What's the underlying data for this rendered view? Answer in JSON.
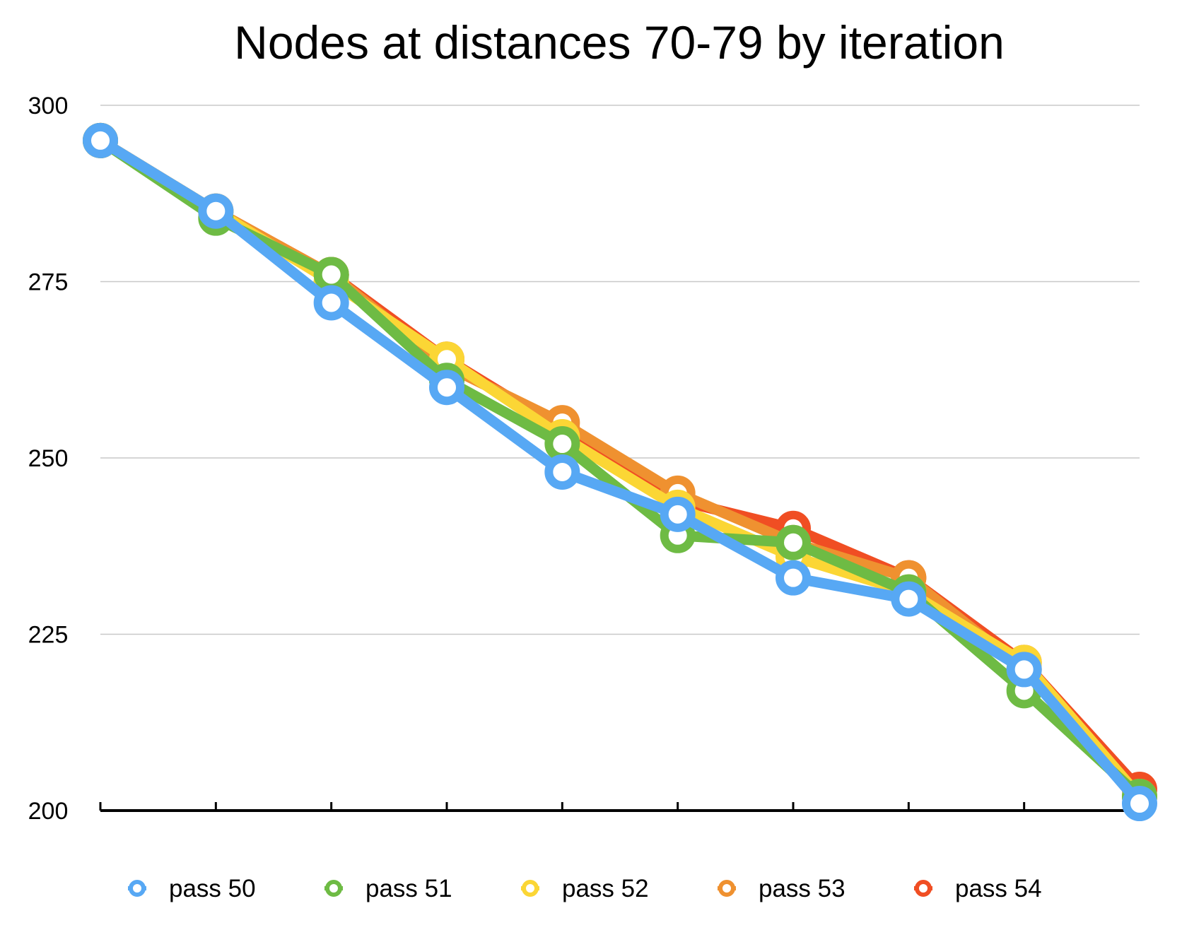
{
  "chart_data": {
    "type": "line",
    "title": "Nodes at distances 70-79 by iteration",
    "xlabel": "",
    "ylabel": "",
    "x": [
      1,
      2,
      3,
      4,
      5,
      6,
      7,
      8,
      9,
      10
    ],
    "ylim": [
      200,
      300
    ],
    "yticks": [
      "200",
      "225",
      "250",
      "275",
      "300"
    ],
    "grid": true,
    "legend": "bottom",
    "series": [
      {
        "name": "pass 54",
        "color": "#f04e23",
        "values": [
          295,
          285,
          276,
          264,
          254,
          244,
          240,
          233,
          221,
          203
        ]
      },
      {
        "name": "pass 53",
        "color": "#ef9130",
        "values": [
          295,
          285,
          276,
          263,
          255,
          245,
          238,
          233,
          220,
          202
        ]
      },
      {
        "name": "pass 52",
        "color": "#fbd635",
        "values": [
          295,
          285,
          275,
          264,
          253,
          243,
          236,
          231,
          221,
          202
        ]
      },
      {
        "name": "pass 51",
        "color": "#6ebb44",
        "values": [
          295,
          284,
          276,
          261,
          252,
          239,
          238,
          231,
          217,
          202
        ]
      },
      {
        "name": "pass 50",
        "color": "#57a8f4",
        "values": [
          295,
          285,
          272,
          260,
          248,
          242,
          233,
          230,
          220,
          201
        ]
      }
    ],
    "legend_order": [
      "pass 50",
      "pass 51",
      "pass 52",
      "pass 53",
      "pass 54"
    ]
  }
}
